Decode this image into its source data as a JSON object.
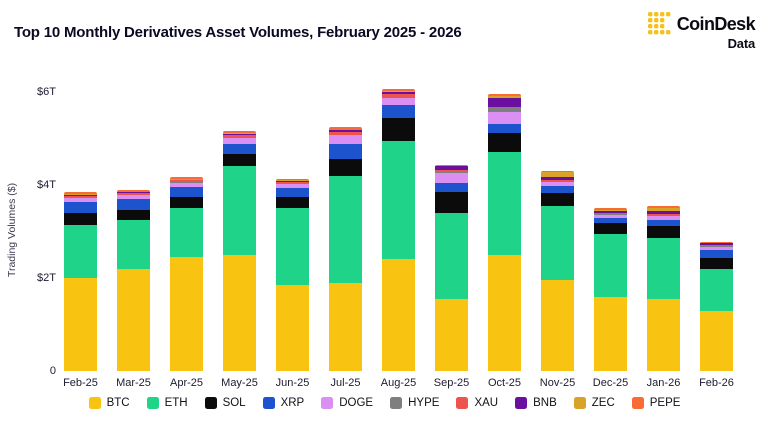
{
  "header": {
    "title": "Top 10 Monthly Derivatives Asset Volumes, February 2025 - 2026",
    "brand": {
      "name": "CoinDesk",
      "sub": "Data",
      "icon_color": "#F7C01B"
    }
  },
  "chart_data": {
    "type": "bar",
    "stacked": true,
    "title": "Top 10 Monthly Derivatives Asset Volumes, February 2025 - 2026",
    "xlabel": "",
    "ylabel": "Trading Volumes ($)",
    "unit": "trillions USD",
    "ylim": [
      0,
      6.6
    ],
    "grid": false,
    "legend_position": "bottom",
    "yticks": [
      {
        "value": 0,
        "label": "0"
      },
      {
        "value": 2,
        "label": "$2T"
      },
      {
        "value": 4,
        "label": "$4T"
      },
      {
        "value": 6,
        "label": "$6T"
      }
    ],
    "categories": [
      "Feb-25",
      "Mar-25",
      "Apr-25",
      "May-25",
      "Jun-25",
      "Jul-25",
      "Aug-25",
      "Sep-25",
      "Oct-25",
      "Nov-25",
      "Dec-25",
      "Jan-26",
      "Feb-26"
    ],
    "series": [
      {
        "name": "BTC",
        "color": "#F8C411",
        "values": [
          2.0,
          2.2,
          2.45,
          2.5,
          1.85,
          1.9,
          2.4,
          1.55,
          2.5,
          1.95,
          1.6,
          1.55,
          1.3
        ]
      },
      {
        "name": "ETH",
        "color": "#1FD389",
        "values": [
          1.15,
          1.05,
          1.05,
          1.9,
          1.65,
          2.3,
          2.55,
          1.85,
          2.2,
          1.6,
          1.35,
          1.3,
          0.9
        ]
      },
      {
        "name": "SOL",
        "color": "#0B0B0B",
        "values": [
          0.25,
          0.22,
          0.24,
          0.27,
          0.25,
          0.37,
          0.5,
          0.45,
          0.42,
          0.27,
          0.24,
          0.26,
          0.22
        ]
      },
      {
        "name": "XRP",
        "color": "#1E53CE",
        "values": [
          0.23,
          0.24,
          0.22,
          0.22,
          0.18,
          0.31,
          0.27,
          0.19,
          0.2,
          0.16,
          0.1,
          0.14,
          0.18
        ]
      },
      {
        "name": "DOGE",
        "color": "#DC8FF2",
        "values": [
          0.09,
          0.07,
          0.09,
          0.12,
          0.09,
          0.19,
          0.15,
          0.23,
          0.24,
          0.09,
          0.07,
          0.09,
          0.07
        ]
      },
      {
        "name": "HYPE",
        "color": "#7F7F7F",
        "values": [
          0.01,
          0.01,
          0.01,
          0.01,
          0.01,
          0.02,
          0.02,
          0.02,
          0.09,
          0.02,
          0.02,
          0.02,
          0.01
        ]
      },
      {
        "name": "XAU",
        "color": "#EE544E",
        "values": [
          0.04,
          0.04,
          0.04,
          0.05,
          0.04,
          0.05,
          0.06,
          0.04,
          0.02,
          0.02,
          0.02,
          0.02,
          0.03
        ]
      },
      {
        "name": "BNB",
        "color": "#6B0FA0",
        "values": [
          0.02,
          0.02,
          0.02,
          0.03,
          0.02,
          0.04,
          0.06,
          0.07,
          0.2,
          0.07,
          0.03,
          0.06,
          0.03
        ]
      },
      {
        "name": "ZEC",
        "color": "#D8A327",
        "values": [
          0.01,
          0.01,
          0.01,
          0.01,
          0.01,
          0.01,
          0.01,
          0.01,
          0.04,
          0.11,
          0.04,
          0.07,
          0.02
        ]
      },
      {
        "name": "PEPE",
        "color": "#F96B34",
        "values": [
          0.04,
          0.04,
          0.04,
          0.05,
          0.04,
          0.06,
          0.05,
          0.03,
          0.04,
          0.02,
          0.03,
          0.04,
          0.02
        ]
      }
    ]
  }
}
